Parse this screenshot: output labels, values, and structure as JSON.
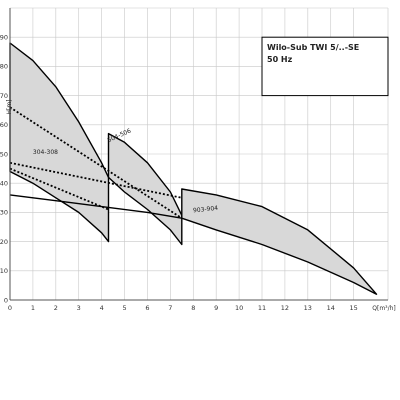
{
  "chart_data": {
    "type": "area",
    "title": "",
    "xlabel": "Q[m³/h]",
    "ylabel": "H[m]",
    "xlim": [
      0,
      16.5
    ],
    "ylim": [
      0,
      100
    ],
    "x_ticks": [
      0,
      1,
      2,
      3,
      4,
      5,
      6,
      7,
      8,
      9,
      10,
      11,
      12,
      13,
      14,
      15
    ],
    "y_ticks": [
      0,
      10,
      20,
      30,
      40,
      50,
      60,
      70,
      80,
      90
    ],
    "grid": true,
    "legend": {
      "position": "top-right",
      "lines": [
        "Wilo-Sub TWI 5/..-SE",
        "50 Hz"
      ]
    },
    "fill_color": "#d8d8d8",
    "line_color": "#000000",
    "series": [
      {
        "name": "304-308",
        "label_at": [
          1,
          50
        ],
        "upper": {
          "x": [
            0,
            1,
            2,
            3,
            4,
            4.3
          ],
          "y": [
            88,
            82,
            73,
            61,
            47,
            42
          ]
        },
        "lower": {
          "x": [
            0,
            1,
            2,
            3,
            4,
            4.3
          ],
          "y": [
            44,
            40,
            35,
            30,
            23,
            20
          ]
        },
        "dotted": {
          "x": [
            0,
            4.3
          ],
          "y": [
            45,
            31
          ]
        }
      },
      {
        "name": "504-506",
        "label_at": [
          4.3,
          54
        ],
        "upper": {
          "x": [
            4.3,
            5,
            6,
            7,
            7.5
          ],
          "y": [
            57,
            54,
            47,
            37,
            29
          ]
        },
        "lower": {
          "x": [
            4.3,
            5,
            6,
            7,
            7.5
          ],
          "y": [
            42,
            37,
            31,
            24,
            19
          ]
        },
        "dotted": {
          "x": [
            0,
            7.5
          ],
          "y": [
            66,
            28
          ]
        }
      },
      {
        "name": "903-904",
        "label_at": [
          8,
          30
        ],
        "upper": {
          "x": [
            7.5,
            9,
            11,
            13,
            15,
            16
          ],
          "y": [
            38,
            36,
            32,
            24,
            11,
            2
          ]
        },
        "lower": {
          "x": [
            7.5,
            9,
            11,
            13,
            15,
            16
          ],
          "y": [
            28,
            24,
            19,
            13,
            6,
            2
          ]
        },
        "dotted": {
          "x": [
            0,
            7.5
          ],
          "y": [
            47,
            35
          ]
        }
      }
    ],
    "bottom_envelope": {
      "x": [
        0,
        2,
        4,
        6,
        7.5
      ],
      "y": [
        36,
        34,
        32,
        30,
        28
      ]
    }
  }
}
